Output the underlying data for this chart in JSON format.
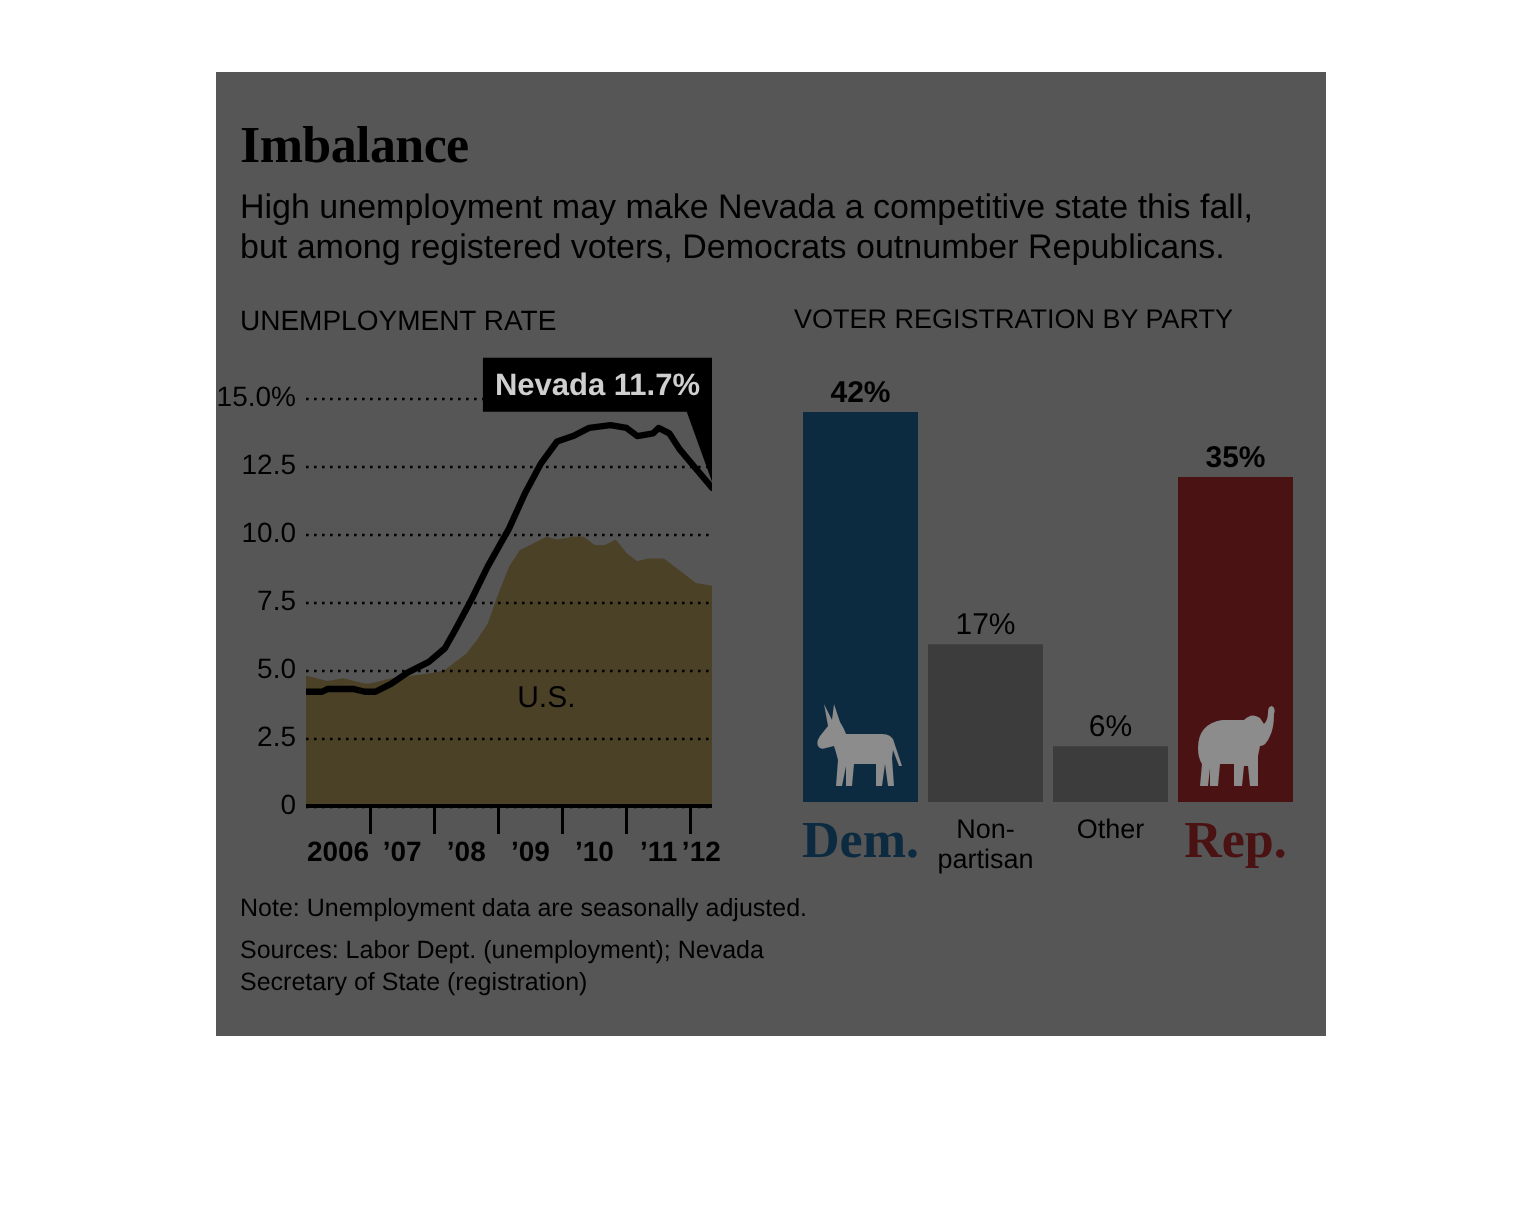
{
  "chart_data": [
    {
      "type": "other",
      "title": "Imbalance",
      "subtitle": "High unemployment may make Nevada a competitive state this fall, but among registered voters, Democrats outnumber Republicans."
    },
    {
      "type": "line",
      "title": "UNEMPLOYMENT RATE",
      "series": [
        {
          "name": "U.S.",
          "type": "area",
          "color": "#4b4126",
          "x": [
            "2006-01",
            "2006-03",
            "2006-05",
            "2006-08",
            "2006-10",
            "2006-12",
            "2007-01",
            "2007-03",
            "2007-05",
            "2007-09",
            "2008-01",
            "2008-03",
            "2008-05",
            "2008-07",
            "2008-09",
            "2008-11",
            "2009-01",
            "2009-03",
            "2009-05",
            "2009-07",
            "2009-10",
            "2009-12",
            "2010-03",
            "2010-05",
            "2010-07",
            "2010-09",
            "2010-11",
            "2011-01",
            "2011-03",
            "2011-05",
            "2011-08",
            "2011-10",
            "2011-12",
            "2012-02",
            "2012-05"
          ],
          "values": [
            4.8,
            4.7,
            4.6,
            4.7,
            4.6,
            4.5,
            4.5,
            4.6,
            4.7,
            4.8,
            4.9,
            5.0,
            5.3,
            5.6,
            6.1,
            6.7,
            7.8,
            8.8,
            9.4,
            9.6,
            9.9,
            9.8,
            9.9,
            9.9,
            9.6,
            9.6,
            9.8,
            9.3,
            9.0,
            9.1,
            9.1,
            8.8,
            8.5,
            8.2,
            8.1
          ]
        },
        {
          "type": "line",
          "color": "#000000",
          "x": [
            "2006-01",
            "2006-04",
            "2006-05",
            "2006-10",
            "2006-12",
            "2007-02",
            "2007-05",
            "2007-08",
            "2007-12",
            "2008-03",
            "2008-05",
            "2008-08",
            "2008-11",
            "2009-03",
            "2009-06",
            "2009-09",
            "2009-12",
            "2010-03",
            "2010-06",
            "2010-10",
            "2011-01",
            "2011-03",
            "2011-06",
            "2011-07",
            "2011-09",
            "2011-11",
            "2012-02",
            "2012-05"
          ],
          "values": [
            4.2,
            4.2,
            4.3,
            4.3,
            4.2,
            4.2,
            4.5,
            4.9,
            5.3,
            5.8,
            6.5,
            7.6,
            8.8,
            10.2,
            11.5,
            12.6,
            13.4,
            13.6,
            13.9,
            14.0,
            13.9,
            13.6,
            13.7,
            13.9,
            13.7,
            13.1,
            12.4,
            11.7
          ]
        }
      ],
      "xlim": [
        "2006-01",
        "2012-05"
      ],
      "xticks": [
        {
          "value": "2006-07",
          "label": "2006"
        },
        {
          "value": "2007",
          "label": null
        },
        {
          "value": "2007-07",
          "label": "’07"
        },
        {
          "value": "2008",
          "label": null
        },
        {
          "value": "2008-07",
          "label": "’08"
        },
        {
          "value": "2009",
          "label": null
        },
        {
          "value": "2009-07",
          "label": "’09"
        },
        {
          "value": "2010",
          "label": null
        },
        {
          "value": "2010-07",
          "label": "’10"
        },
        {
          "value": "2011",
          "label": null
        },
        {
          "value": "2011-07",
          "label": "’11"
        },
        {
          "value": "2012",
          "label": null
        },
        {
          "value": "2012-03",
          "label": "’12"
        }
      ],
      "ylim": [
        0,
        15
      ],
      "yticks": [
        0,
        2.5,
        {
          "value": 5,
          "label": "5.0"
        },
        7.5,
        {
          "value": 10,
          "label": "10.0"
        },
        12.5,
        {
          "value": 15,
          "label": "15.0%"
        }
      ],
      "grid": "y",
      "annotations": [
        {
          "text": "Nevada 11.7%",
          "x": "2012-05",
          "y": 11.7
        }
      ]
    },
    {
      "type": "bar",
      "title": "VOTER REGISTRATION BY PARTY",
      "categories": [
        "Dem.",
        "Non-partisan",
        "Other",
        "Rep."
      ],
      "values": [
        42,
        17,
        6,
        35
      ],
      "colors": [
        "#0c2b40",
        "#3c3c3c",
        "#3c3c3c",
        "#4a1212"
      ],
      "value_labels": [
        "42%",
        "17%",
        "6%",
        "35%"
      ]
    },
    {
      "type": "other",
      "annotations": [
        "Note: Unemployment data are seasonally adjusted.",
        "Sources: Labor Dept. (unemployment); Nevada Secretary of State (registration)"
      ]
    }
  ]
}
